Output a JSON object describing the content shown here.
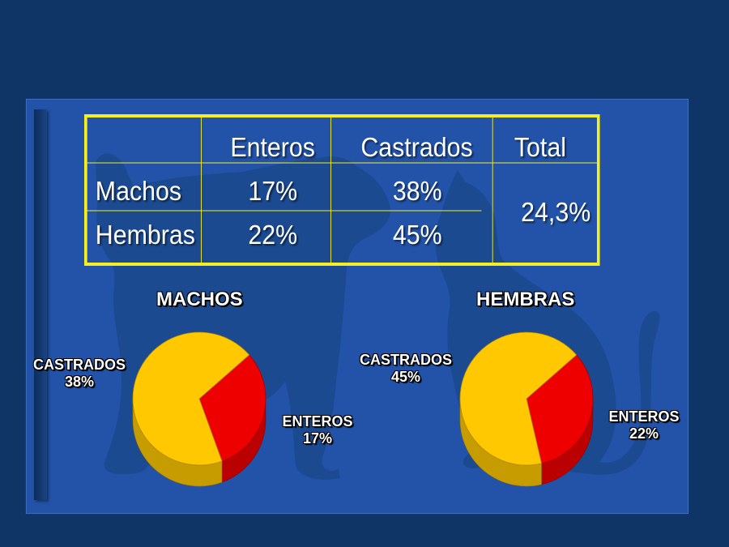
{
  "colors": {
    "background": "#0f3466",
    "panel": "#2253a8",
    "table_border": "#f5ef22",
    "enteros": "#ee0000",
    "castrados": "#ffc800",
    "silhouette": "#1b4a8f"
  },
  "table": {
    "headers": [
      "",
      "Enteros",
      "Castrados",
      "Total"
    ],
    "rows": [
      {
        "label": "Machos",
        "enteros": "17%",
        "castrados": "38%"
      },
      {
        "label": "Hembras",
        "enteros": "22%",
        "castrados": "45%"
      }
    ],
    "total": "24,3%"
  },
  "chart_data": [
    {
      "type": "pie",
      "title": "MACHOS",
      "labels": [
        "ENTEROS",
        "CASTRADOS"
      ],
      "values": [
        17,
        38
      ],
      "label_text": [
        "17%",
        "38%"
      ],
      "colors": [
        "#ee0000",
        "#ffc800"
      ]
    },
    {
      "type": "pie",
      "title": "HEMBRAS",
      "labels": [
        "ENTEROS",
        "CASTRADOS"
      ],
      "values": [
        22,
        45
      ],
      "label_text": [
        "22%",
        "45%"
      ],
      "colors": [
        "#ee0000",
        "#ffc800"
      ]
    }
  ]
}
